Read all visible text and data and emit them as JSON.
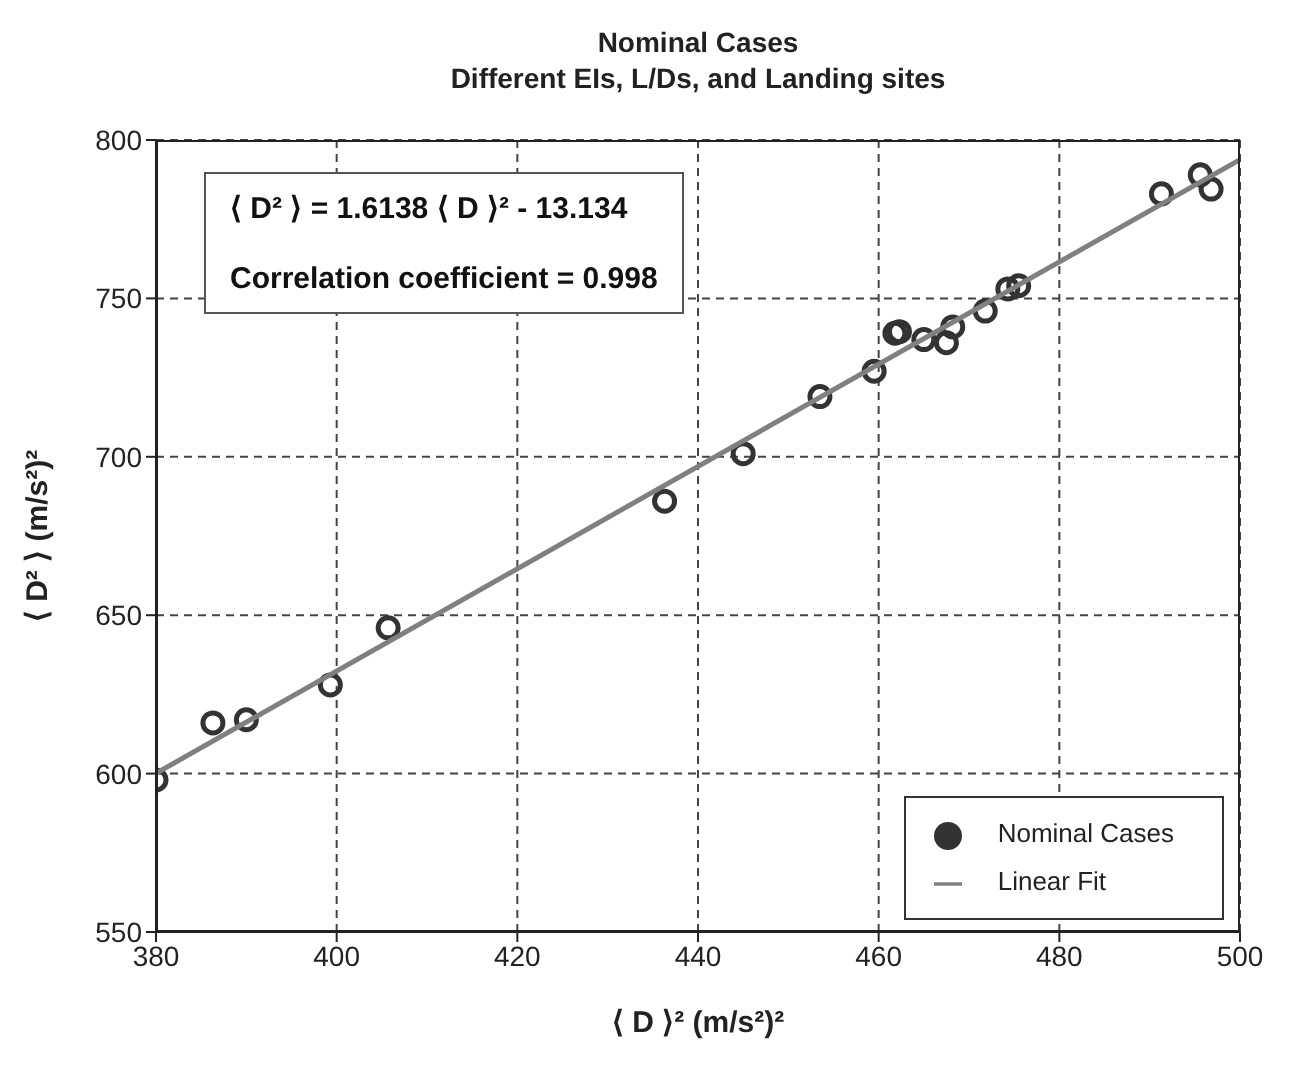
{
  "chart_data": {
    "type": "scatter",
    "title": "Nominal Cases",
    "subtitle": "Different EIs, L/Ds, and Landing sites",
    "xlabel": "⟨ D ⟩² (m/s²)²",
    "ylabel": "⟨ D² ⟩ (m/s²)²",
    "annotations": [
      "⟨ D² ⟩ = 1.6138 ⟨ D ⟩² - 13.134",
      "Correlation coefficient = 0.998"
    ],
    "xlim": [
      380,
      500
    ],
    "xticks": [
      380,
      400,
      420,
      440,
      460,
      480,
      500
    ],
    "ylim": [
      550,
      800
    ],
    "yticks": [
      550,
      600,
      650,
      700,
      750,
      800
    ],
    "grid": true,
    "legend": "bottom right",
    "series": [
      {
        "name": "Nominal Cases",
        "type": "scatter",
        "marker": "circle",
        "color": "#333333",
        "x": [
          380,
          386.3,
          390,
          399.3,
          405.7,
          436.3,
          445,
          453.5,
          459.5,
          461.8,
          462.3,
          465,
          467.5,
          468.2,
          471.8,
          474.3,
          475.5,
          491.3,
          495.6,
          496.8
        ],
        "values": [
          598,
          616,
          617,
          628,
          646,
          686,
          701,
          719,
          727,
          739,
          739.5,
          737,
          736,
          741,
          746,
          753,
          754,
          783,
          789,
          784.5
        ]
      },
      {
        "name": "Linear Fit",
        "type": "line",
        "marker": "none",
        "line_style": "solid",
        "color": "#808080",
        "x": [
          380,
          500
        ],
        "values": [
          600.1,
          793.8
        ]
      }
    ]
  }
}
